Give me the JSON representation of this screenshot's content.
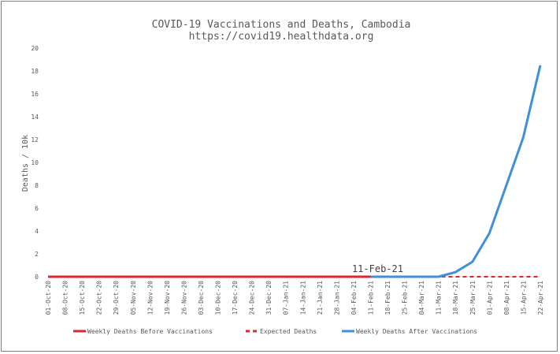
{
  "chart_data": {
    "type": "line",
    "title": "COVID-19 Vaccinations and Deaths, Cambodia",
    "subtitle": "https://covid19.healthdata.org",
    "xlabel": "",
    "ylabel": "Deaths / 10k",
    "ylim": [
      0,
      20
    ],
    "yticks": [
      0,
      2,
      4,
      6,
      8,
      10,
      12,
      14,
      16,
      18,
      20
    ],
    "categories": [
      "01-Oct-20",
      "08-Oct-20",
      "15-Oct-20",
      "22-Oct-20",
      "29-Oct-20",
      "05-Nov-20",
      "12-Nov-20",
      "19-Nov-20",
      "26-Nov-20",
      "03-Dec-20",
      "10-Dec-20",
      "17-Dec-20",
      "24-Dec-20",
      "31-Dec-20",
      "07-Jan-21",
      "14-Jan-21",
      "21-Jan-21",
      "28-Jan-21",
      "04-Feb-21",
      "11-Feb-21",
      "18-Feb-21",
      "25-Feb-21",
      "04-Mar-21",
      "11-Mar-21",
      "18-Mar-21",
      "25-Mar-21",
      "01-Apr-21",
      "08-Apr-21",
      "15-Apr-21",
      "22-Apr-21"
    ],
    "series": [
      {
        "name": "Weekly Deaths Before Vaccinations",
        "style": "solid",
        "color": "#e0262b",
        "values": [
          0,
          0,
          0,
          0,
          0,
          0,
          0,
          0,
          0,
          0,
          0,
          0,
          0,
          0,
          0,
          0,
          0,
          0,
          0,
          0,
          null,
          null,
          null,
          null,
          null,
          null,
          null,
          null,
          null,
          null
        ]
      },
      {
        "name": "Expected Deaths",
        "style": "dashed",
        "color": "#e0262b",
        "values": [
          null,
          null,
          null,
          null,
          null,
          null,
          null,
          null,
          null,
          null,
          null,
          null,
          null,
          null,
          null,
          null,
          null,
          null,
          null,
          0,
          0,
          0,
          0,
          0,
          0,
          0,
          0,
          0,
          0,
          0
        ]
      },
      {
        "name": "Weekly Deaths After Vaccinations",
        "style": "solid",
        "color": "#3f8fd9",
        "values": [
          null,
          null,
          null,
          null,
          null,
          null,
          null,
          null,
          null,
          null,
          null,
          null,
          null,
          null,
          null,
          null,
          null,
          null,
          null,
          0,
          0,
          0,
          0,
          0,
          0.4,
          1.3,
          3.8,
          8.0,
          12.2,
          18.5
        ]
      }
    ],
    "annotation": {
      "label": "11-Feb-21",
      "at": "11-Feb-21"
    },
    "grid": false,
    "legend_position": "bottom"
  }
}
